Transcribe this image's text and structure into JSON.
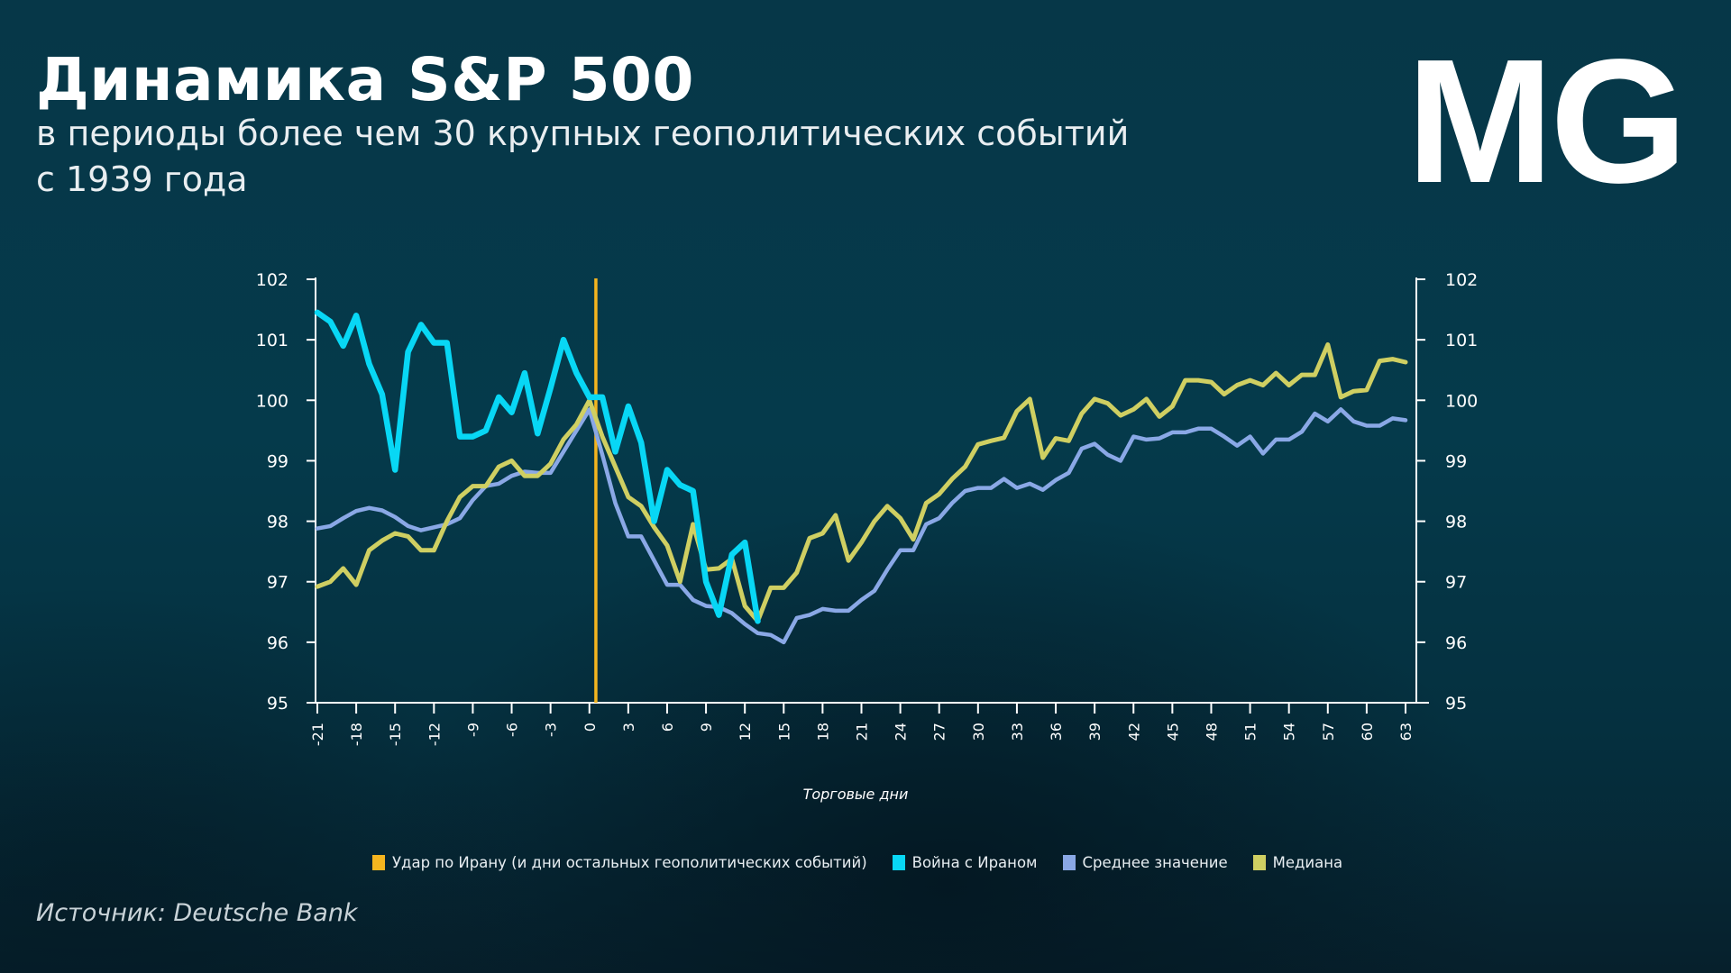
{
  "header": {
    "title": "Динамика S&P 500",
    "subtitle_line1": "в периоды более чем 30 крупных геополитических событий",
    "subtitle_line2": "с 1939 года",
    "logo": "MG"
  },
  "source": "Источник: Deutsche Bank",
  "colors": {
    "event": "#f5b51f",
    "war": "#08d7f5",
    "mean": "#8aa8e6",
    "median": "#cfcf62",
    "axis": "#ffffff"
  },
  "chart_data": {
    "type": "line",
    "xlabel": "Торговые дни",
    "ylabel": "",
    "xlim": [
      -21,
      63
    ],
    "ylim": [
      95,
      102
    ],
    "x_ticks": [
      -21,
      -18,
      -15,
      -12,
      -9,
      -6,
      -3,
      0,
      3,
      6,
      9,
      12,
      15,
      18,
      21,
      24,
      27,
      30,
      33,
      36,
      39,
      42,
      45,
      48,
      51,
      54,
      57,
      60,
      63
    ],
    "y_ticks": [
      95,
      96,
      97,
      98,
      99,
      100,
      101,
      102
    ],
    "y_axes": [
      "left",
      "right"
    ],
    "grid": false,
    "legend_placement": "bottom",
    "event_line": {
      "name": "Удар по Ирану (и дни остальных геополитических событий)",
      "x": 0.5
    },
    "series": [
      {
        "name": "Война с Ираном",
        "color_key": "war",
        "x_start": -21,
        "values": [
          101.45,
          101.3,
          100.9,
          101.4,
          100.6,
          100.1,
          98.85,
          100.8,
          101.25,
          100.95,
          100.95,
          99.4,
          99.4,
          99.5,
          100.05,
          99.8,
          100.45,
          99.45,
          100.2,
          101.0,
          100.45,
          100.05,
          100.05,
          99.15,
          99.9,
          99.3,
          98.0,
          98.85,
          98.6,
          98.5,
          97.0,
          96.45,
          97.45,
          97.65,
          96.35
        ]
      },
      {
        "name": "Среднее значение",
        "color_key": "mean",
        "x_start": -21,
        "values": [
          97.88,
          97.92,
          98.05,
          98.17,
          98.22,
          98.18,
          98.07,
          97.92,
          97.85,
          97.9,
          97.95,
          98.05,
          98.35,
          98.58,
          98.62,
          98.75,
          98.82,
          98.8,
          98.8,
          99.15,
          99.5,
          99.85,
          99.1,
          98.3,
          97.75,
          97.75,
          97.35,
          96.95,
          96.95,
          96.7,
          96.6,
          96.58,
          96.48,
          96.3,
          96.15,
          96.12,
          96.0,
          96.4,
          96.45,
          96.55,
          96.52,
          96.52,
          96.7,
          96.85,
          97.2,
          97.52,
          97.52,
          97.95,
          98.05,
          98.3,
          98.5,
          98.55,
          98.55,
          98.7,
          98.55,
          98.62,
          98.52,
          98.68,
          98.8,
          99.2,
          99.28,
          99.1,
          99.0,
          99.4,
          99.35,
          99.37,
          99.47,
          99.47,
          99.53,
          99.53,
          99.4,
          99.25,
          99.4,
          99.12,
          99.35,
          99.35,
          99.48,
          99.78,
          99.65,
          99.85,
          99.65,
          99.58,
          99.58,
          99.7,
          99.67
        ]
      },
      {
        "name": "Медиана",
        "color_key": "median",
        "x_start": -21,
        "values": [
          96.92,
          97.0,
          97.22,
          96.95,
          97.52,
          97.68,
          97.8,
          97.75,
          97.52,
          97.52,
          98.0,
          98.4,
          98.58,
          98.58,
          98.9,
          99.0,
          98.75,
          98.75,
          98.95,
          99.35,
          99.6,
          100.0,
          99.4,
          98.9,
          98.4,
          98.25,
          97.9,
          97.6,
          97.0,
          97.95,
          97.2,
          97.22,
          97.38,
          96.6,
          96.35,
          96.9,
          96.9,
          97.15,
          97.72,
          97.8,
          98.1,
          97.35,
          97.65,
          98.0,
          98.25,
          98.05,
          97.7,
          98.3,
          98.45,
          98.7,
          98.9,
          99.27,
          99.33,
          99.38,
          99.82,
          100.02,
          99.05,
          99.37,
          99.33,
          99.78,
          100.02,
          99.95,
          99.75,
          99.85,
          100.02,
          99.73,
          99.9,
          100.33,
          100.33,
          100.3,
          100.1,
          100.25,
          100.33,
          100.25,
          100.45,
          100.25,
          100.42,
          100.42,
          100.92,
          100.05,
          100.15,
          100.17,
          100.65,
          100.68,
          100.63
        ]
      }
    ],
    "legend": [
      {
        "label": "Удар по Ирану (и дни остальных геополитических событий)",
        "color_key": "event"
      },
      {
        "label": "Война с Ираном",
        "color_key": "war"
      },
      {
        "label": "Среднее значение",
        "color_key": "mean"
      },
      {
        "label": "Медиана",
        "color_key": "median"
      }
    ]
  }
}
